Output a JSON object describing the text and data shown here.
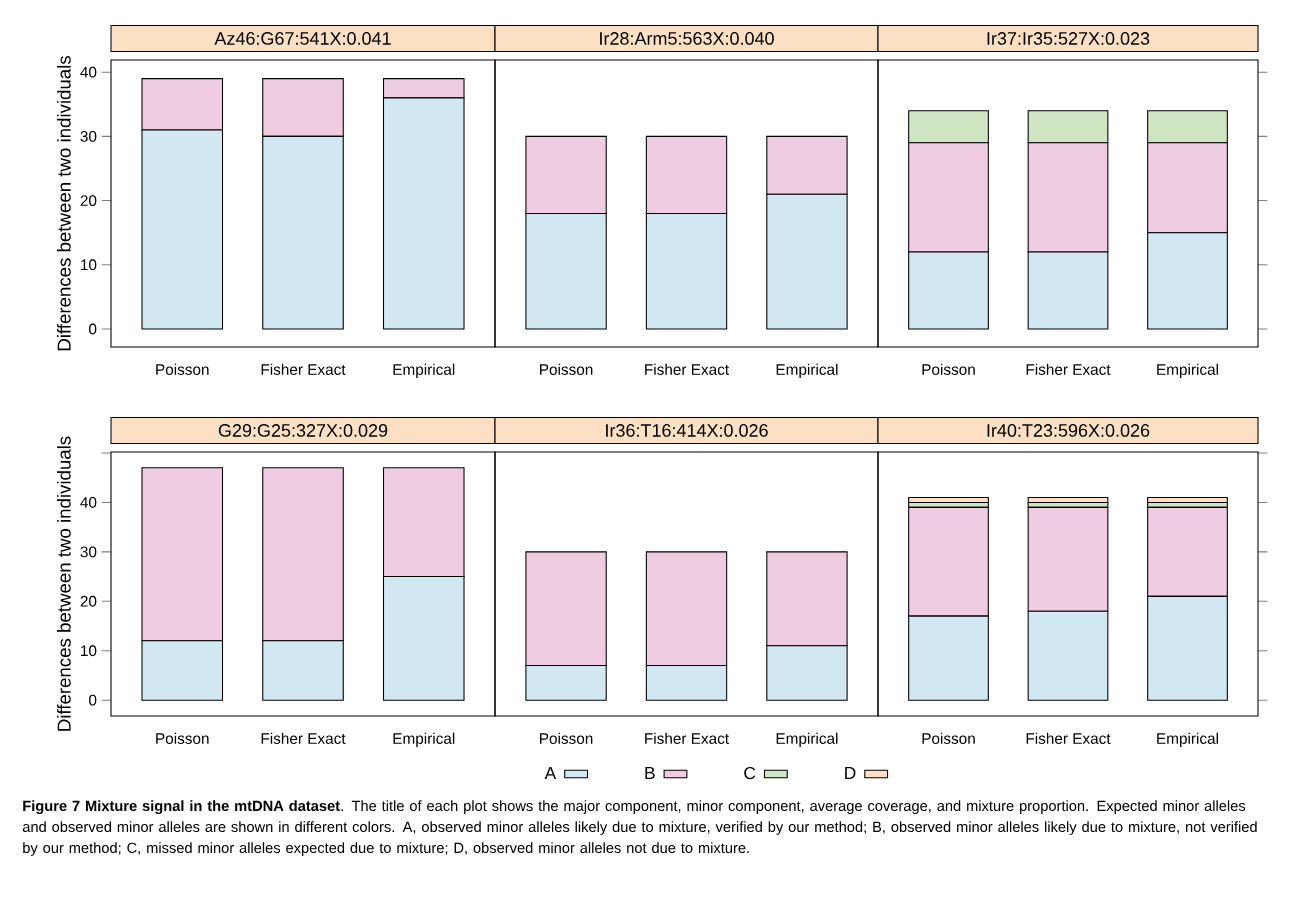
{
  "chart_data": [
    {
      "type": "bar",
      "stacked": true,
      "title": "Az46:G67:541X:0.041",
      "ylabel": "Differences between two individuals",
      "categories": [
        "Poisson",
        "Fisher Exact",
        "Empirical"
      ],
      "ylim": [
        -2.8,
        41.9
      ],
      "yticks": [
        0,
        10,
        20,
        30,
        40
      ],
      "series": [
        {
          "color": "#d1e8f3",
          "values": [
            31,
            30,
            36
          ]
        },
        {
          "color": "#efcce1",
          "values": [
            8,
            9,
            3
          ]
        }
      ]
    },
    {
      "type": "bar",
      "stacked": true,
      "title": "Ir28:Arm5:563X:0.040",
      "categories": [
        "Poisson",
        "Fisher Exact",
        "Empirical"
      ],
      "ylim": [
        -2.8,
        41.9
      ],
      "tick_labels": "x",
      "series": [
        {
          "color": "#d1e8f3",
          "values": [
            18,
            18,
            21
          ]
        },
        {
          "color": "#efcce1",
          "values": [
            12,
            12,
            9
          ]
        }
      ]
    },
    {
      "type": "bar",
      "stacked": true,
      "title": "Ir37:Ir35:527X:0.023",
      "categories": [
        "Poisson",
        "Fisher Exact",
        "Empirical"
      ],
      "ylim": [
        -2.8,
        41.9
      ],
      "yticks": [
        0,
        10,
        20,
        30,
        40
      ],
      "tick_labels": "x",
      "series": [
        {
          "color": "#d1e8f3",
          "values": [
            12,
            12,
            15
          ]
        },
        {
          "color": "#efcce1",
          "values": [
            17,
            17,
            14
          ]
        },
        {
          "color": "#d0e6c2",
          "values": [
            5,
            5,
            5
          ]
        }
      ]
    },
    {
      "type": "bar",
      "stacked": true,
      "title": "G29:G25:327X:0.029",
      "ylabel": "Differences between two individuals",
      "categories": [
        "Poisson",
        "Fisher Exact",
        "Empirical"
      ],
      "ylim": [
        -3.2,
        50.2
      ],
      "yticks": [
        0,
        10,
        20,
        30,
        40,
        {
          "value": 50,
          "label": null
        }
      ],
      "series": [
        {
          "color": "#d1e8f3",
          "values": [
            12,
            12,
            25
          ]
        },
        {
          "color": "#efcce1",
          "values": [
            35,
            35,
            22
          ]
        }
      ]
    },
    {
      "type": "bar",
      "stacked": true,
      "title": "Ir36:T16:414X:0.026",
      "categories": [
        "Poisson",
        "Fisher Exact",
        "Empirical"
      ],
      "ylim": [
        -3.2,
        50.2
      ],
      "tick_labels": "x",
      "series": [
        {
          "color": "#d1e8f3",
          "values": [
            7,
            7,
            11
          ]
        },
        {
          "color": "#efcce1",
          "values": [
            23,
            23,
            19
          ]
        }
      ]
    },
    {
      "type": "bar",
      "stacked": true,
      "title": "Ir40:T23:596X:0.026",
      "categories": [
        "Poisson",
        "Fisher Exact",
        "Empirical"
      ],
      "ylim": [
        -3.2,
        50.2
      ],
      "yticks": [
        0,
        10,
        20,
        30,
        40,
        {
          "value": 50,
          "label": null
        }
      ],
      "tick_labels": "x",
      "legend": "bottom",
      "series": [
        {
          "name": "A",
          "color": "#d1e8f3",
          "values": [
            17,
            18,
            21
          ]
        },
        {
          "name": "B",
          "color": "#efcce1",
          "values": [
            22,
            21,
            18
          ]
        },
        {
          "name": "C",
          "color": "#d0e6c2",
          "values": [
            1,
            1,
            1
          ]
        },
        {
          "name": "D",
          "color": "#fce0c4",
          "values": [
            1,
            1,
            1
          ]
        }
      ],
      "annotations": [
        "**Figure 7 Mixture signal in the mtDNA dataset**. The title of each plot shows the major component, minor component, average coverage, and mixture proportion. Expected minor alleles and observed minor alleles are shown in different colors. A, observed minor alleles likely due to mixture, verified by our method; B, observed minor alleles likely due to mixture, not verified by our method; C, missed minor alleles expected due to mixture; D, observed minor alleles not due to mixture."
      ]
    }
  ]
}
